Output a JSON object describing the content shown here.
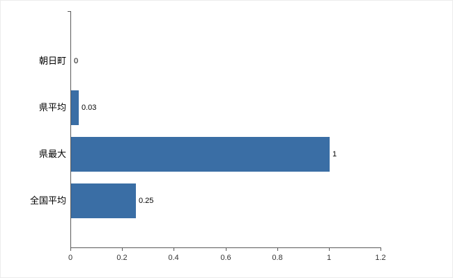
{
  "chart_data": {
    "type": "bar",
    "orientation": "horizontal",
    "title": "",
    "categories": [
      "朝日町",
      "県平均",
      "県最大",
      "全国平均"
    ],
    "values": [
      0,
      0.03,
      1,
      0.25
    ],
    "value_labels": [
      "0",
      "0.03",
      "1",
      "0.25"
    ],
    "xlim": [
      0,
      1.2
    ],
    "xticks": [
      0,
      0.2,
      0.4,
      0.6,
      0.8,
      1,
      1.2
    ],
    "xtick_labels": [
      "0",
      "0.2",
      "0.4",
      "0.6",
      "0.8",
      "1",
      "1.2"
    ],
    "bar_color": "#3a6ea5",
    "axis_color": "#595959",
    "text_color": "#000000",
    "grid": false,
    "legend": null
  }
}
